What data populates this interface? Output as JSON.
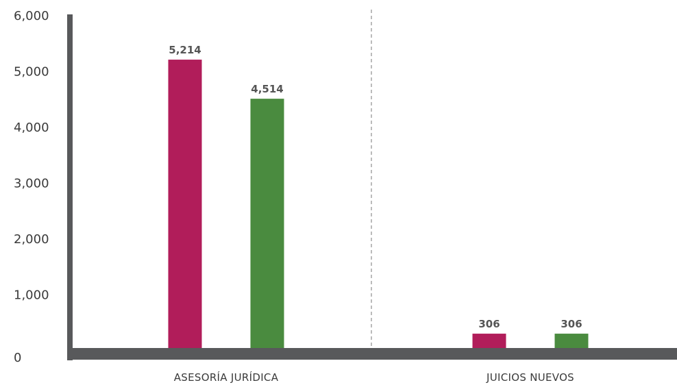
{
  "chart_data": {
    "type": "bar",
    "categories": [
      "ASESORÍA JURÍDICA",
      "JUICIOS NUEVOS"
    ],
    "series": [
      {
        "values": [
          5214,
          306
        ],
        "color": "#b11d5a"
      },
      {
        "values": [
          4514,
          306
        ],
        "color": "#4a8b3f"
      }
    ],
    "data_labels": [
      [
        "5,214",
        "306"
      ],
      [
        "4,514",
        "306"
      ]
    ],
    "yticks": [
      {
        "value": 0,
        "label": "0"
      },
      {
        "value": 1000,
        "label": "1,000"
      },
      {
        "value": 2000,
        "label": "2,000"
      },
      {
        "value": 3000,
        "label": "3,000"
      },
      {
        "value": 4000,
        "label": "4,000"
      },
      {
        "value": 5000,
        "label": "5,000"
      },
      {
        "value": 6000,
        "label": "6,000"
      }
    ],
    "ylim": [
      0,
      6000
    ],
    "title": "",
    "xlabel": "",
    "ylabel": "",
    "grid": false,
    "axis_color": "#58595b",
    "separator": "dashed"
  }
}
